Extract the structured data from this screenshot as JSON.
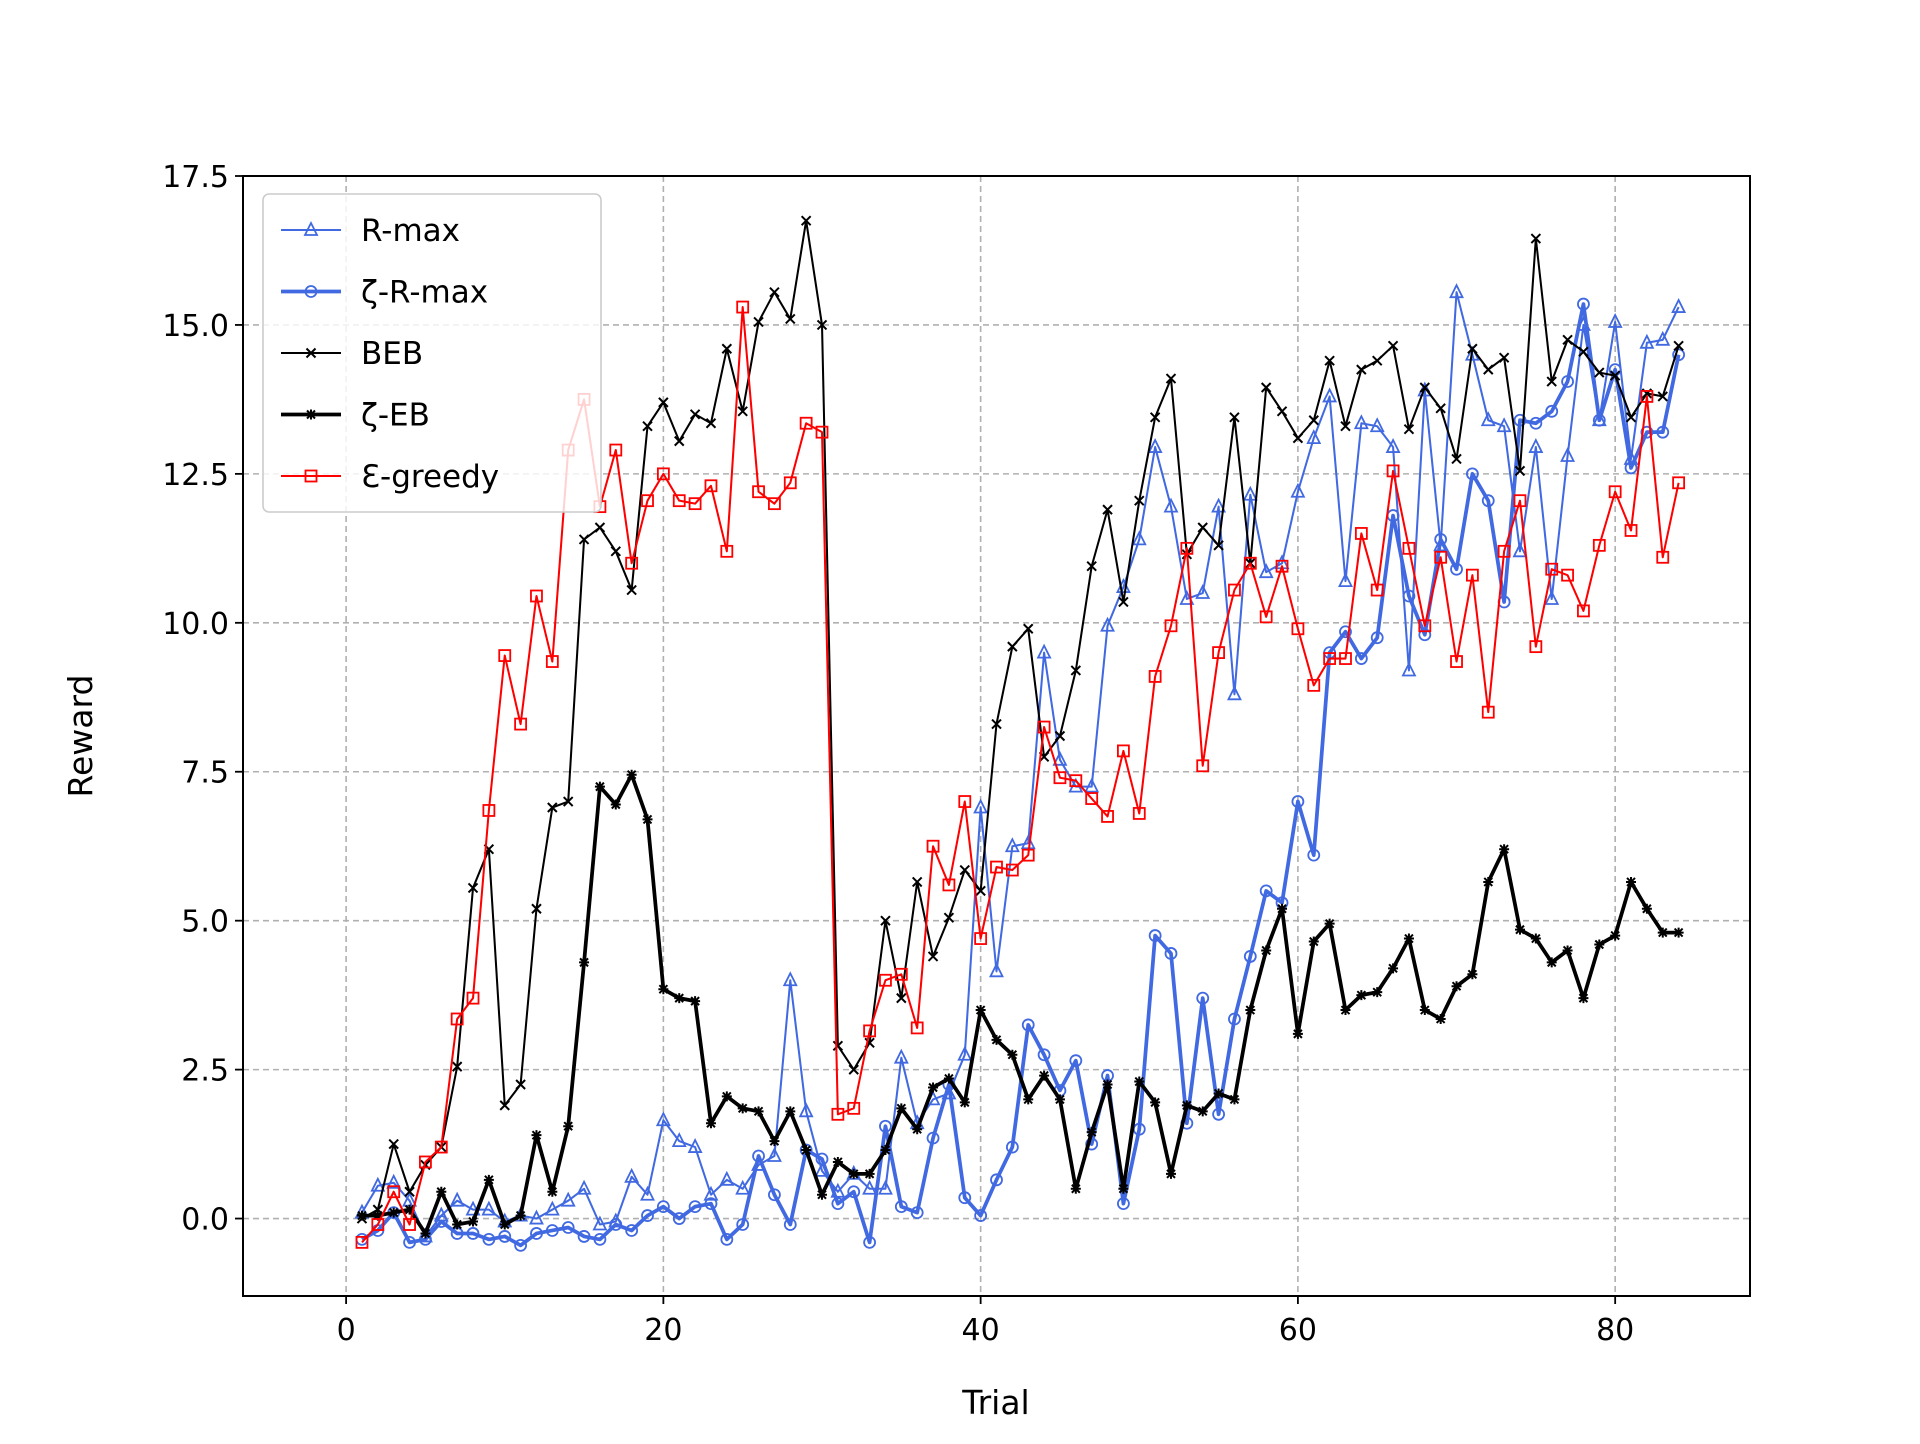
{
  "chart_data": {
    "type": "line",
    "title": "",
    "xlabel": "Trial",
    "ylabel": "Reward",
    "xlim": [
      -6.5,
      88.5
    ],
    "ylim": [
      -1.3,
      17.5
    ],
    "xticks": [
      0,
      20,
      40,
      60,
      80
    ],
    "xtick_labels": [
      "0",
      "20",
      "40",
      "60",
      "80"
    ],
    "yticks": [
      0.0,
      2.5,
      5.0,
      7.5,
      10.0,
      12.5,
      15.0,
      17.5
    ],
    "ytick_labels": [
      "0.0",
      "2.5",
      "5.0",
      "7.5",
      "10.0",
      "12.5",
      "15.0",
      "17.5"
    ],
    "grid": true,
    "legend_position": "upper-left",
    "x": [
      1,
      2,
      3,
      4,
      5,
      6,
      7,
      8,
      9,
      10,
      11,
      12,
      13,
      14,
      15,
      16,
      17,
      18,
      19,
      20,
      21,
      22,
      23,
      24,
      25,
      26,
      27,
      28,
      29,
      30,
      31,
      32,
      33,
      34,
      35,
      36,
      37,
      38,
      39,
      40,
      41,
      42,
      43,
      44,
      45,
      46,
      47,
      48,
      49,
      50,
      51,
      52,
      53,
      54,
      55,
      56,
      57,
      58,
      59,
      60,
      61,
      62,
      63,
      64,
      65,
      66,
      67,
      68,
      69,
      70,
      71,
      72,
      73,
      74,
      75,
      76,
      77,
      78,
      79,
      80,
      81,
      82,
      83,
      84
    ],
    "series": [
      {
        "name": "R-max",
        "color": "#4169e1",
        "marker": "triangle",
        "linewidth": 1.2,
        "values": [
          0.1,
          0.55,
          0.6,
          0.3,
          -0.3,
          0.05,
          0.3,
          0.15,
          0.15,
          -0.05,
          0.05,
          0.0,
          0.15,
          0.3,
          0.5,
          -0.1,
          -0.05,
          0.7,
          0.4,
          1.65,
          1.3,
          1.2,
          0.4,
          0.65,
          0.5,
          0.9,
          1.05,
          4.0,
          1.8,
          0.8,
          0.45,
          0.75,
          0.5,
          0.5,
          2.7,
          1.6,
          2.0,
          2.1,
          2.75,
          6.9,
          4.15,
          6.25,
          6.3,
          9.5,
          7.7,
          7.25,
          7.25,
          9.95,
          10.6,
          11.4,
          12.95,
          11.95,
          10.4,
          10.5,
          11.95,
          8.8,
          12.15,
          10.85,
          11.0,
          12.2,
          13.1,
          13.8,
          10.7,
          13.35,
          13.3,
          12.95,
          9.2,
          13.9,
          11.3,
          15.55,
          14.5,
          13.4,
          13.3,
          11.2,
          12.95,
          10.4,
          12.8,
          15.0,
          13.4,
          15.05,
          12.75,
          14.7,
          14.75,
          15.3
        ]
      },
      {
        "name": "ζ-R-max",
        "color": "#4169e1",
        "marker": "circle",
        "linewidth": 2.2,
        "values": [
          -0.35,
          -0.2,
          0.1,
          -0.4,
          -0.35,
          -0.05,
          -0.25,
          -0.25,
          -0.35,
          -0.3,
          -0.45,
          -0.25,
          -0.2,
          -0.15,
          -0.3,
          -0.35,
          -0.1,
          -0.2,
          0.05,
          0.2,
          0.0,
          0.2,
          0.25,
          -0.35,
          -0.1,
          1.05,
          0.4,
          -0.1,
          1.15,
          1.0,
          0.25,
          0.45,
          -0.4,
          1.55,
          0.2,
          0.1,
          1.35,
          2.25,
          0.35,
          0.05,
          0.65,
          1.2,
          3.25,
          2.75,
          2.15,
          2.65,
          1.25,
          2.4,
          0.25,
          1.5,
          4.75,
          4.45,
          1.6,
          3.7,
          1.75,
          3.35,
          4.4,
          5.5,
          5.3,
          7.0,
          6.1,
          9.5,
          9.85,
          9.4,
          9.75,
          11.8,
          10.45,
          9.8,
          11.4,
          10.9,
          12.5,
          12.05,
          10.35,
          13.4,
          13.35,
          13.55,
          14.05,
          15.35,
          13.4,
          14.25,
          12.6,
          13.2,
          13.2,
          14.5
        ]
      },
      {
        "name": "BEB",
        "color": "#000000",
        "marker": "x",
        "linewidth": 1.2,
        "values": [
          0.0,
          0.15,
          1.25,
          0.45,
          0.9,
          1.2,
          2.55,
          5.55,
          6.2,
          1.9,
          2.25,
          5.2,
          6.9,
          7.0,
          11.4,
          11.6,
          11.2,
          10.55,
          13.3,
          13.7,
          13.05,
          13.5,
          13.35,
          14.6,
          13.55,
          15.05,
          15.55,
          15.1,
          16.75,
          15.0,
          2.9,
          2.5,
          2.95,
          5.0,
          3.7,
          5.65,
          4.4,
          5.05,
          5.85,
          5.5,
          8.3,
          9.6,
          9.9,
          7.75,
          8.1,
          9.2,
          10.95,
          11.9,
          10.35,
          12.05,
          13.45,
          14.1,
          11.15,
          11.6,
          11.3,
          13.45,
          11.0,
          13.95,
          13.55,
          13.1,
          13.4,
          14.4,
          13.3,
          14.25,
          14.4,
          14.65,
          13.25,
          13.95,
          13.6,
          12.75,
          14.6,
          14.25,
          14.45,
          12.55,
          16.45,
          14.05,
          14.75,
          14.55,
          14.2,
          14.15,
          13.45,
          13.85,
          13.8,
          14.65
        ]
      },
      {
        "name": "ζ-EB",
        "color": "#000000",
        "marker": "plus",
        "linewidth": 2.2,
        "values": [
          0.05,
          0.05,
          0.1,
          0.15,
          -0.25,
          0.45,
          -0.1,
          -0.05,
          0.65,
          -0.1,
          0.05,
          1.4,
          0.45,
          1.55,
          4.3,
          7.25,
          6.95,
          7.45,
          6.7,
          3.85,
          3.7,
          3.65,
          1.6,
          2.05,
          1.85,
          1.8,
          1.3,
          1.8,
          1.15,
          0.4,
          0.95,
          0.75,
          0.75,
          1.15,
          1.85,
          1.5,
          2.2,
          2.35,
          1.95,
          3.5,
          3.0,
          2.75,
          2.0,
          2.4,
          2.0,
          0.5,
          1.45,
          2.25,
          0.5,
          2.3,
          1.95,
          0.75,
          1.9,
          1.8,
          2.1,
          2.0,
          3.5,
          4.5,
          5.2,
          3.1,
          4.65,
          4.95,
          3.5,
          3.75,
          3.8,
          4.2,
          4.7,
          3.5,
          3.35,
          3.9,
          4.1,
          5.65,
          6.2,
          4.85,
          4.7,
          4.3,
          4.5,
          3.7,
          4.6,
          4.75,
          5.65,
          5.2,
          4.8,
          4.8
        ]
      },
      {
        "name": "Ɛ-greedy",
        "color": "#ff0000",
        "marker": "square",
        "linewidth": 1.2,
        "values": [
          -0.4,
          -0.1,
          0.45,
          -0.1,
          0.95,
          1.2,
          3.35,
          3.7,
          6.85,
          9.45,
          8.3,
          10.45,
          9.35,
          12.9,
          13.75,
          11.95,
          12.9,
          11.0,
          12.05,
          12.5,
          12.05,
          12.0,
          12.3,
          11.2,
          15.3,
          12.2,
          12.0,
          12.35,
          13.35,
          13.2,
          1.75,
          1.85,
          3.15,
          4.0,
          4.1,
          3.2,
          6.25,
          5.6,
          7.0,
          4.7,
          5.9,
          5.85,
          6.1,
          8.25,
          7.4,
          7.35,
          7.05,
          6.75,
          7.85,
          6.8,
          9.1,
          9.95,
          11.25,
          7.6,
          9.5,
          10.55,
          11.0,
          10.1,
          10.95,
          9.9,
          8.95,
          9.4,
          9.4,
          11.5,
          10.55,
          12.55,
          11.25,
          9.95,
          11.1,
          9.35,
          10.8,
          8.5,
          11.2,
          12.05,
          9.6,
          10.9,
          10.8,
          10.2,
          11.3,
          12.2,
          11.55,
          13.8,
          11.1,
          12.35
        ]
      }
    ]
  }
}
